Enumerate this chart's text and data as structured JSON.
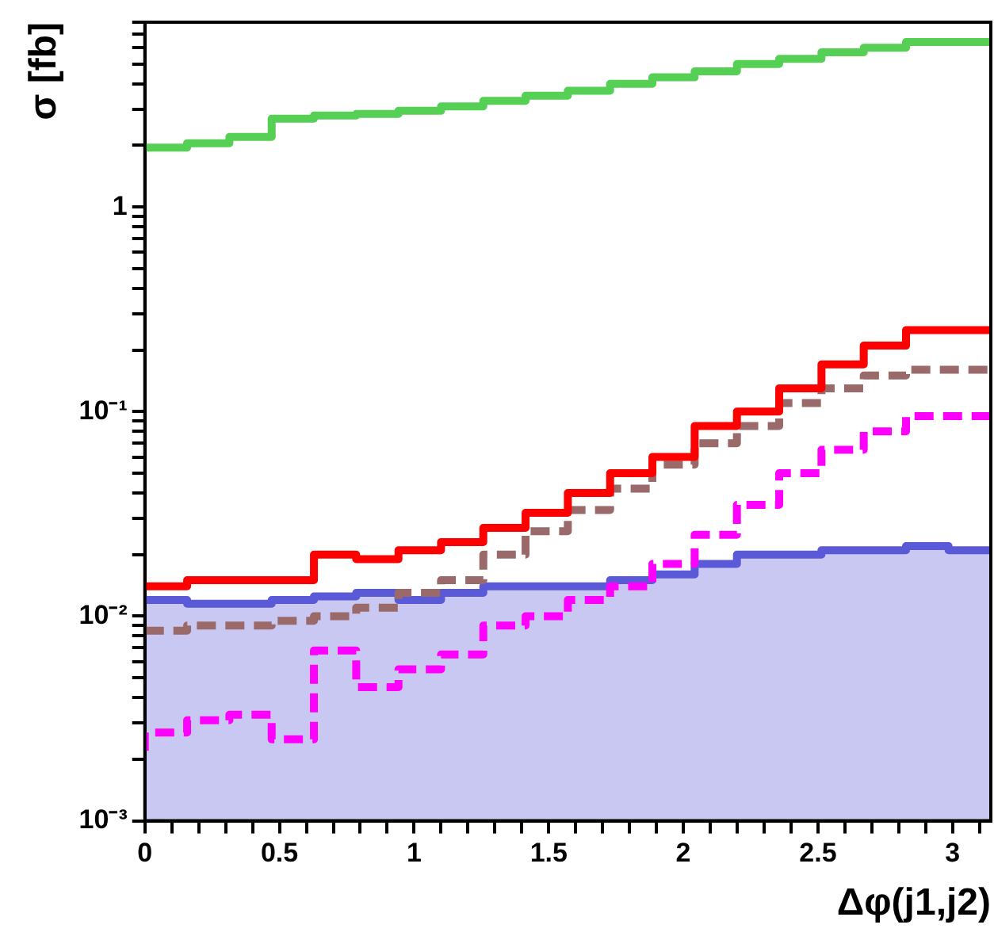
{
  "chart_data": {
    "type": "step",
    "xlabel": "Δφ(j1,j2)",
    "ylabel": "σ [fb]",
    "x": [
      0,
      0.157,
      0.314,
      0.471,
      0.628,
      0.785,
      0.942,
      1.1,
      1.257,
      1.414,
      1.571,
      1.728,
      1.885,
      2.042,
      2.199,
      2.356,
      2.513,
      2.67,
      2.827,
      2.985,
      3.142
    ],
    "series": [
      {
        "type": "area",
        "color": "#5a5ad8",
        "x": [
          0,
          0.157,
          0.157,
          0.314,
          0.314,
          0.471,
          0.471,
          0.628,
          0.628,
          0.785,
          0.785,
          0.942,
          0.942,
          1.1,
          1.1,
          1.257,
          1.257,
          1.414,
          1.414,
          1.571,
          1.571,
          1.728,
          1.728,
          1.885,
          1.885,
          2.042,
          2.042,
          2.199,
          2.199,
          2.356,
          2.356,
          2.513,
          2.513,
          2.67,
          2.67,
          2.827,
          2.827,
          2.985,
          2.985,
          3.142
        ],
        "values": [
          0.012,
          0.012,
          0.0115,
          0.0115,
          0.0115,
          0.0115,
          0.012,
          0.012,
          0.0125,
          0.0125,
          0.013,
          0.013,
          0.012,
          0.012,
          0.013,
          0.013,
          0.014,
          0.014,
          0.014,
          0.014,
          0.014,
          0.014,
          0.015,
          0.015,
          0.016,
          0.016,
          0.018,
          0.018,
          0.02,
          0.02,
          0.02,
          0.02,
          0.021,
          0.021,
          0.021,
          0.021,
          0.022,
          0.022,
          0.021,
          0.021
        ]
      },
      {
        "color": "#55d055",
        "values": [
          1.9,
          1.95,
          2.05,
          2.2,
          2.7,
          2.8,
          2.85,
          2.95,
          3.1,
          3.3,
          3.5,
          3.7,
          4.0,
          4.3,
          4.6,
          5.0,
          5.3,
          5.7,
          6.0,
          6.4,
          6.4
        ]
      },
      {
        "color": "#ff0000",
        "values": [
          0.014,
          0.014,
          0.015,
          0.015,
          0.015,
          0.02,
          0.019,
          0.021,
          0.023,
          0.027,
          0.032,
          0.04,
          0.05,
          0.06,
          0.085,
          0.1,
          0.13,
          0.17,
          0.21,
          0.25,
          0.25
        ]
      },
      {
        "color": "#9a6a6a",
        "line_style": "dashed",
        "values": [
          0.0085,
          0.0085,
          0.009,
          0.009,
          0.0095,
          0.01,
          0.011,
          0.013,
          0.015,
          0.02,
          0.026,
          0.033,
          0.042,
          0.055,
          0.07,
          0.085,
          0.11,
          0.13,
          0.15,
          0.16,
          0.16
        ]
      },
      {
        "color": "#ff00ff",
        "line_style": "dashed",
        "values": [
          0.0022,
          0.0027,
          0.0031,
          0.0033,
          0.0025,
          0.0068,
          0.0045,
          0.0055,
          0.0065,
          0.009,
          0.01,
          0.012,
          0.014,
          0.018,
          0.025,
          0.035,
          0.05,
          0.065,
          0.08,
          0.095,
          0.095
        ]
      }
    ],
    "log": "y",
    "grid": false,
    "legend": false,
    "xlim": [
      0,
      3.142
    ],
    "xticks": [
      0,
      {
        "value": 0.1,
        "label": null
      },
      {
        "value": 0.2,
        "label": null
      },
      {
        "value": 0.3,
        "label": null
      },
      {
        "value": 0.4,
        "label": null
      },
      0.5,
      {
        "value": 0.6,
        "label": null
      },
      {
        "value": 0.7,
        "label": null
      },
      {
        "value": 0.8,
        "label": null
      },
      {
        "value": 0.9,
        "label": null
      },
      1,
      {
        "value": 1.1,
        "label": null
      },
      {
        "value": 1.2,
        "label": null
      },
      {
        "value": 1.3,
        "label": null
      },
      {
        "value": 1.4,
        "label": null
      },
      1.5,
      {
        "value": 1.6,
        "label": null
      },
      {
        "value": 1.7,
        "label": null
      },
      {
        "value": 1.8,
        "label": null
      },
      {
        "value": 1.9,
        "label": null
      },
      2,
      {
        "value": 2.1,
        "label": null
      },
      {
        "value": 2.2,
        "label": null
      },
      {
        "value": 2.3,
        "label": null
      },
      {
        "value": 2.4,
        "label": null
      },
      2.5,
      {
        "value": 2.6,
        "label": null
      },
      {
        "value": 2.7,
        "label": null
      },
      {
        "value": 2.8,
        "label": null
      },
      {
        "value": 2.9,
        "label": null
      },
      3,
      {
        "value": 3.1,
        "label": null
      }
    ],
    "ylim": [
      0.001,
      8
    ],
    "yticks": [
      {
        "value": 0.001,
        "label": "10⁻³"
      },
      {
        "value": 0.002,
        "label": null
      },
      {
        "value": 0.003,
        "label": null
      },
      {
        "value": 0.004,
        "label": null
      },
      {
        "value": 0.005,
        "label": null
      },
      {
        "value": 0.006,
        "label": null
      },
      {
        "value": 0.007,
        "label": null
      },
      {
        "value": 0.008,
        "label": null
      },
      {
        "value": 0.009,
        "label": null
      },
      {
        "value": 0.01,
        "label": "10⁻²"
      },
      {
        "value": 0.02,
        "label": null
      },
      {
        "value": 0.03,
        "label": null
      },
      {
        "value": 0.04,
        "label": null
      },
      {
        "value": 0.05,
        "label": null
      },
      {
        "value": 0.06,
        "label": null
      },
      {
        "value": 0.07,
        "label": null
      },
      {
        "value": 0.08,
        "label": null
      },
      {
        "value": 0.09,
        "label": null
      },
      {
        "value": 0.1,
        "label": "10⁻¹"
      },
      {
        "value": 0.2,
        "label": null
      },
      {
        "value": 0.3,
        "label": null
      },
      {
        "value": 0.4,
        "label": null
      },
      {
        "value": 0.5,
        "label": null
      },
      {
        "value": 0.6,
        "label": null
      },
      {
        "value": 0.7,
        "label": null
      },
      {
        "value": 0.8,
        "label": null
      },
      {
        "value": 0.9,
        "label": null
      },
      1,
      {
        "value": 2,
        "label": null
      },
      {
        "value": 3,
        "label": null
      },
      {
        "value": 4,
        "label": null
      },
      {
        "value": 5,
        "label": null
      },
      {
        "value": 6,
        "label": null
      },
      {
        "value": 7,
        "label": null
      },
      {
        "value": 8,
        "label": null
      }
    ]
  }
}
